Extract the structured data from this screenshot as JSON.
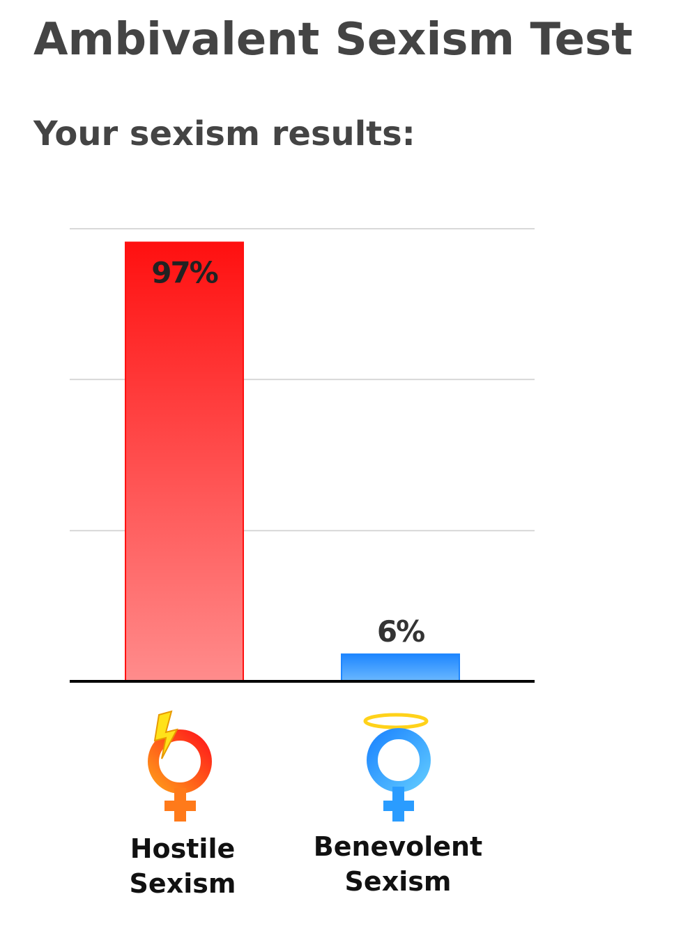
{
  "page": {
    "title": "Ambivalent Sexism Test",
    "subtitle": "Your sexism results:"
  },
  "chart_data": {
    "type": "bar",
    "categories": [
      "Hostile Sexism",
      "Benevolent Sexism"
    ],
    "category_lines": [
      [
        "Hostile",
        "Sexism"
      ],
      [
        "Benevolent",
        "Sexism"
      ]
    ],
    "values": [
      97,
      6
    ],
    "value_labels": [
      "97%",
      "6%"
    ],
    "ylim": [
      0,
      100
    ],
    "gridlines": [
      33.3,
      66.7,
      100
    ],
    "grid": true,
    "colors": {
      "hostile_top": "#ff1010",
      "hostile_bottom": "#ff8c8c",
      "benevolent_top": "#1e86ff",
      "benevolent_bottom": "#6bb8ff",
      "grid": "#d8d8d8",
      "axis": "#000000"
    },
    "icons": [
      "female-symbol-lightning-icon",
      "female-symbol-halo-icon"
    ]
  }
}
